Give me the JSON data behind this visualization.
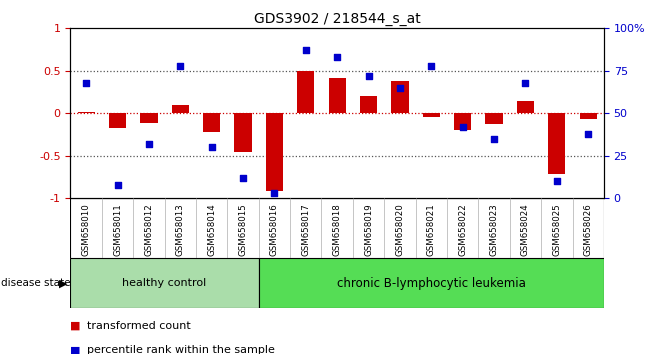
{
  "title": "GDS3902 / 218544_s_at",
  "samples": [
    "GSM658010",
    "GSM658011",
    "GSM658012",
    "GSM658013",
    "GSM658014",
    "GSM658015",
    "GSM658016",
    "GSM658017",
    "GSM658018",
    "GSM658019",
    "GSM658020",
    "GSM658021",
    "GSM658022",
    "GSM658023",
    "GSM658024",
    "GSM658025",
    "GSM658026"
  ],
  "bar_values": [
    0.02,
    -0.17,
    -0.12,
    0.1,
    -0.22,
    -0.45,
    -0.92,
    0.5,
    0.42,
    0.2,
    0.38,
    -0.04,
    -0.2,
    -0.13,
    0.15,
    -0.72,
    -0.07
  ],
  "scatter_values": [
    68,
    8,
    32,
    78,
    30,
    12,
    3,
    87,
    83,
    72,
    65,
    78,
    42,
    35,
    68,
    10,
    38
  ],
  "healthy_count": 6,
  "ylim_left": [
    -1,
    1
  ],
  "ylim_right": [
    0,
    100
  ],
  "bar_color": "#cc0000",
  "scatter_color": "#0000cc",
  "healthy_color": "#aaddaa",
  "leukemia_color": "#55dd55",
  "healthy_label": "healthy control",
  "leukemia_label": "chronic B-lymphocytic leukemia",
  "disease_state_label": "disease state",
  "legend_bar": "transformed count",
  "legend_scatter": "percentile rank within the sample",
  "bg_color": "#ffffff",
  "xlabels_bg": "#cccccc",
  "tick_fontsize": 8
}
